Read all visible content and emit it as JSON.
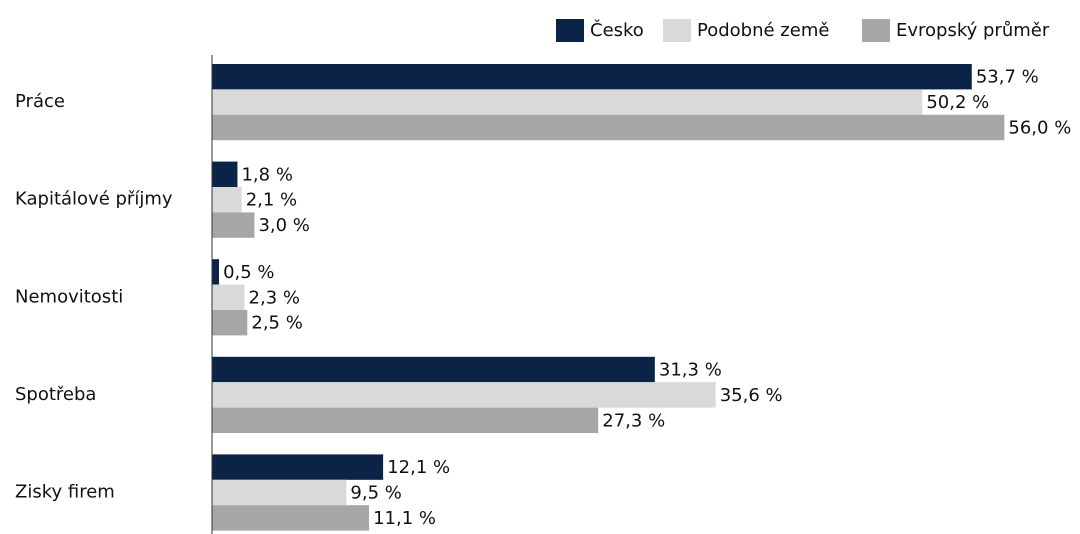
{
  "chart_data": {
    "type": "hbar",
    "categories": [
      "Práce",
      "Kapitálové příjmy",
      "Nemovitosti",
      "Spotřeba",
      "Zisky firem"
    ],
    "series": [
      {
        "name": "Česko",
        "color": "#0b2347",
        "values": [
          53.7,
          1.8,
          0.5,
          31.3,
          12.1
        ],
        "value_labels": [
          "53,7 %",
          "1,8 %",
          "0,5 %",
          "31,3 %",
          "12,1 %"
        ]
      },
      {
        "name": "Podobné země",
        "color": "#d9d9d9",
        "values": [
          50.2,
          2.1,
          2.3,
          35.6,
          9.5
        ],
        "value_labels": [
          "50,2 %",
          "2,1 %",
          "2,3 %",
          "35,6 %",
          "9,5 %"
        ]
      },
      {
        "name": "Evropský průměr",
        "color": "#a6a6a6",
        "values": [
          56.0,
          3.0,
          2.5,
          27.3,
          11.1
        ],
        "value_labels": [
          "56,0 %",
          "3,0 %",
          "2,5 %",
          "27,3 %",
          "11,1 %"
        ]
      }
    ],
    "legend": "top-right"
  }
}
